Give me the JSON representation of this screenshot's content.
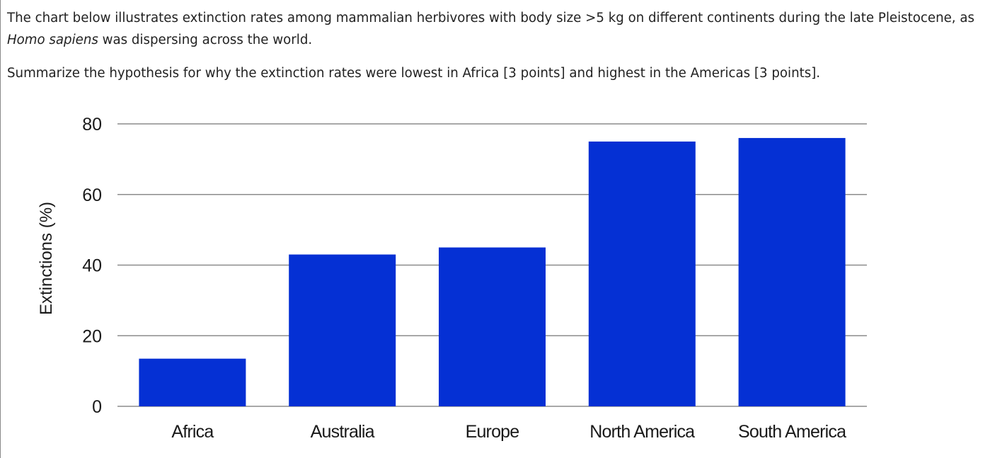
{
  "question": {
    "line1": "The chart below illustrates extinction rates among mammalian herbivores with body size >5 kg on different continents during the late Pleistocene, as",
    "line2_italic": "Homo sapiens",
    "line2_rest": " was dispersing across the world.",
    "prompt": "Summarize the hypothesis for why the extinction rates were lowest in Africa [3 points] and highest in the Americas [3 points]."
  },
  "chart_data": {
    "type": "bar",
    "categories": [
      "Africa",
      "Australia",
      "Europe",
      "North America",
      "South America"
    ],
    "values": [
      13.5,
      43,
      45,
      75,
      76
    ],
    "ylabel": "Extinctions (%)",
    "xlabel": "",
    "title": "",
    "ylim": [
      0,
      80
    ],
    "yticks": [
      "0",
      "20",
      "40",
      "60",
      "80"
    ],
    "grid": true,
    "legend": "none",
    "bar_color": "#0530d4",
    "grid_color": "#8c8c8c"
  }
}
